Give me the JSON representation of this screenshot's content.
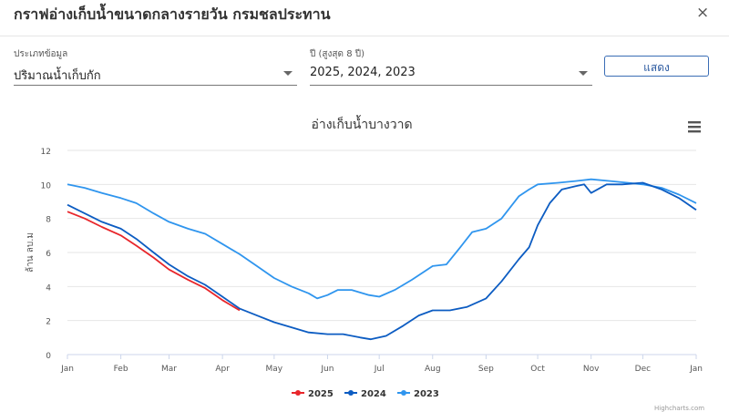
{
  "dialog": {
    "title": "กราฟอ่างเก็บน้ำขนาดกลางรายวัน กรมชลประทาน",
    "close_label": "×",
    "icon_close": "close-icon"
  },
  "filters": {
    "data_type": {
      "label": "ประเภทข้อมูล",
      "value": "ปริมาณน้ำเก็บกัก"
    },
    "year": {
      "label": "ปี (สูงสุด 8 ปี)",
      "value": "2025, 2024, 2023"
    },
    "show_button": "แสดง"
  },
  "chart_menu_icon": "hamburger-menu-icon",
  "credits": "Highcharts.com",
  "colors": {
    "s2025": "#e8262b",
    "s2024": "#0c5cc2",
    "s2023": "#2f95ee",
    "grid": "#e6e6e6"
  },
  "chart_data": {
    "type": "line",
    "title": "อ่างเก็บน้ำบางวาด",
    "xlabel": "",
    "ylabel": "ล้าน ลบ.ม",
    "x_unit": "day of year",
    "xlim": [
      0,
      365
    ],
    "ylim": [
      0,
      12
    ],
    "yticks": [
      0,
      2,
      4,
      6,
      8,
      10,
      12
    ],
    "xticks": [
      {
        "label": "Jan",
        "day": 0
      },
      {
        "label": "Feb",
        "day": 31
      },
      {
        "label": "Mar",
        "day": 59
      },
      {
        "label": "Apr",
        "day": 90
      },
      {
        "label": "May",
        "day": 120
      },
      {
        "label": "Jun",
        "day": 151
      },
      {
        "label": "Jul",
        "day": 181
      },
      {
        "label": "Aug",
        "day": 212
      },
      {
        "label": "Sep",
        "day": 243
      },
      {
        "label": "Oct",
        "day": 273
      },
      {
        "label": "Nov",
        "day": 304
      },
      {
        "label": "Dec",
        "day": 334
      },
      {
        "label": "Jan",
        "day": 365
      }
    ],
    "grid": true,
    "legend": "bottom-center",
    "series": [
      {
        "name": "2025",
        "color": "#e8262b",
        "points": [
          [
            0,
            8.4
          ],
          [
            10,
            8.0
          ],
          [
            20,
            7.5
          ],
          [
            31,
            7.0
          ],
          [
            40,
            6.4
          ],
          [
            50,
            5.7
          ],
          [
            59,
            5.0
          ],
          [
            70,
            4.4
          ],
          [
            80,
            3.9
          ],
          [
            90,
            3.2
          ],
          [
            100,
            2.6
          ]
        ]
      },
      {
        "name": "2024",
        "color": "#0c5cc2",
        "points": [
          [
            0,
            8.8
          ],
          [
            10,
            8.3
          ],
          [
            20,
            7.8
          ],
          [
            31,
            7.4
          ],
          [
            40,
            6.8
          ],
          [
            50,
            6.0
          ],
          [
            59,
            5.3
          ],
          [
            70,
            4.6
          ],
          [
            80,
            4.1
          ],
          [
            90,
            3.4
          ],
          [
            100,
            2.7
          ],
          [
            110,
            2.3
          ],
          [
            120,
            1.9
          ],
          [
            130,
            1.6
          ],
          [
            140,
            1.3
          ],
          [
            151,
            1.2
          ],
          [
            160,
            1.2
          ],
          [
            170,
            1.0
          ],
          [
            176,
            0.9
          ],
          [
            185,
            1.1
          ],
          [
            195,
            1.7
          ],
          [
            204,
            2.3
          ],
          [
            212,
            2.6
          ],
          [
            222,
            2.6
          ],
          [
            232,
            2.8
          ],
          [
            243,
            3.3
          ],
          [
            252,
            4.3
          ],
          [
            262,
            5.6
          ],
          [
            268,
            6.3
          ],
          [
            273,
            7.6
          ],
          [
            280,
            8.9
          ],
          [
            287,
            9.7
          ],
          [
            295,
            9.9
          ],
          [
            300,
            10.0
          ],
          [
            304,
            9.5
          ],
          [
            313,
            10.0
          ],
          [
            322,
            10.0
          ],
          [
            334,
            10.1
          ],
          [
            345,
            9.7
          ],
          [
            355,
            9.2
          ],
          [
            365,
            8.5
          ]
        ]
      },
      {
        "name": "2023",
        "color": "#2f95ee",
        "points": [
          [
            0,
            10.0
          ],
          [
            10,
            9.8
          ],
          [
            20,
            9.5
          ],
          [
            31,
            9.2
          ],
          [
            40,
            8.9
          ],
          [
            50,
            8.3
          ],
          [
            59,
            7.8
          ],
          [
            70,
            7.4
          ],
          [
            80,
            7.1
          ],
          [
            90,
            6.5
          ],
          [
            100,
            5.9
          ],
          [
            110,
            5.2
          ],
          [
            120,
            4.5
          ],
          [
            130,
            4.0
          ],
          [
            140,
            3.6
          ],
          [
            145,
            3.3
          ],
          [
            151,
            3.5
          ],
          [
            157,
            3.8
          ],
          [
            165,
            3.8
          ],
          [
            175,
            3.5
          ],
          [
            181,
            3.4
          ],
          [
            190,
            3.8
          ],
          [
            200,
            4.4
          ],
          [
            212,
            5.2
          ],
          [
            220,
            5.3
          ],
          [
            228,
            6.3
          ],
          [
            235,
            7.2
          ],
          [
            243,
            7.4
          ],
          [
            252,
            8.0
          ],
          [
            262,
            9.3
          ],
          [
            268,
            9.7
          ],
          [
            273,
            10.0
          ],
          [
            285,
            10.1
          ],
          [
            295,
            10.2
          ],
          [
            304,
            10.3
          ],
          [
            315,
            10.2
          ],
          [
            325,
            10.1
          ],
          [
            334,
            10.0
          ],
          [
            345,
            9.8
          ],
          [
            355,
            9.4
          ],
          [
            365,
            8.9
          ]
        ]
      }
    ]
  }
}
